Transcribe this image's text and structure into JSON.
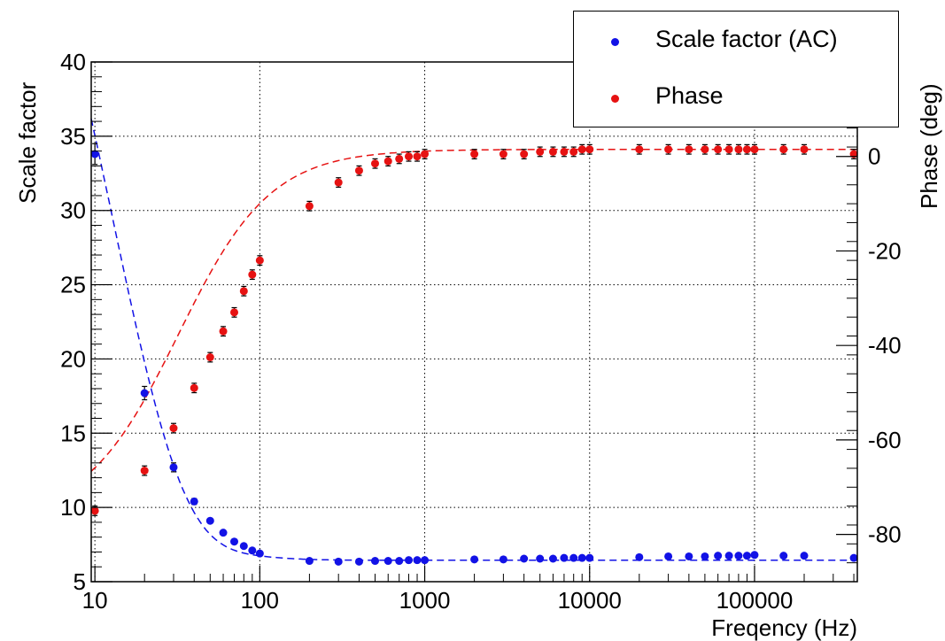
{
  "chart_data": {
    "type": "scatter",
    "title": "",
    "xlabel": "Freqency (Hz)",
    "ylabel": "Scale factor",
    "y2label": "Phase (deg)",
    "x_scale": "log",
    "xlim": [
      9.5,
      420000
    ],
    "ylim": [
      5,
      40
    ],
    "y2lim": [
      -90,
      20
    ],
    "grid": true,
    "legend_position": "top-right",
    "x_ticks": [
      "10",
      "100",
      "1000",
      "10000",
      "100000"
    ],
    "y_ticks": [
      "5",
      "10",
      "15",
      "20",
      "25",
      "30",
      "35",
      "40"
    ],
    "y2_ticks": [
      "-80",
      "-60",
      "-40",
      "-20",
      "0"
    ],
    "series": [
      {
        "name": "Scale factor (AC)",
        "axis": "left",
        "color": "#1212e6",
        "marker": "circle",
        "fit": "dashed",
        "x": [
          10,
          20,
          30,
          40,
          50,
          60,
          70,
          80,
          90,
          100,
          200,
          300,
          400,
          500,
          600,
          700,
          800,
          900,
          1000,
          2000,
          3000,
          4000,
          5000,
          6000,
          7000,
          8000,
          9000,
          10000,
          20000,
          30000,
          40000,
          50000,
          60000,
          70000,
          80000,
          90000,
          100000,
          150000,
          200000,
          400000
        ],
        "y": [
          33.8,
          17.7,
          12.7,
          10.4,
          9.1,
          8.3,
          7.7,
          7.4,
          7.1,
          6.9,
          6.4,
          6.35,
          6.35,
          6.4,
          6.4,
          6.4,
          6.45,
          6.45,
          6.45,
          6.5,
          6.5,
          6.55,
          6.55,
          6.55,
          6.6,
          6.6,
          6.6,
          6.6,
          6.65,
          6.7,
          6.7,
          6.7,
          6.75,
          6.75,
          6.75,
          6.75,
          6.8,
          6.75,
          6.75,
          6.6
        ],
        "yerr": [
          0.7,
          0.45,
          0.3,
          0.2,
          0.1,
          0.05,
          0.05,
          0.05,
          0.05,
          0.05,
          0.03,
          0.03,
          0.03,
          0.03,
          0.03,
          0.03,
          0.03,
          0.03,
          0.03,
          0.03,
          0.03,
          0.03,
          0.03,
          0.03,
          0.03,
          0.03,
          0.03,
          0.03,
          0.03,
          0.03,
          0.03,
          0.03,
          0.03,
          0.03,
          0.03,
          0.03,
          0.03,
          0.03,
          0.03,
          0.03
        ]
      },
      {
        "name": "Phase",
        "axis": "right",
        "color": "#e61212",
        "marker": "circle",
        "fit": "dashed",
        "x": [
          10,
          20,
          30,
          40,
          50,
          60,
          70,
          80,
          90,
          100,
          200,
          300,
          400,
          500,
          600,
          700,
          800,
          900,
          1000,
          2000,
          3000,
          4000,
          5000,
          6000,
          7000,
          8000,
          9000,
          10000,
          20000,
          30000,
          40000,
          50000,
          60000,
          70000,
          80000,
          90000,
          100000,
          150000,
          200000,
          400000
        ],
        "y": [
          -75,
          -66.5,
          -57.5,
          -49,
          -42.5,
          -37,
          -33,
          -28.5,
          -25,
          -22,
          -10.5,
          -5.5,
          -3,
          -1.5,
          -1,
          -0.5,
          0,
          0,
          0.5,
          0.5,
          0.5,
          0.5,
          1,
          1,
          1,
          1,
          1.5,
          1.5,
          1.5,
          1.5,
          1.5,
          1.5,
          1.5,
          1.5,
          1.5,
          1.5,
          1.5,
          1.5,
          1.5,
          0.5
        ],
        "yerr": [
          1,
          1,
          1,
          1,
          1,
          1,
          1,
          1,
          1,
          1,
          1,
          1,
          1,
          1,
          1,
          1,
          1,
          1,
          1,
          1,
          1,
          1,
          1,
          1,
          1,
          1,
          1,
          1,
          1,
          1,
          1,
          1,
          1,
          1,
          1,
          1,
          1,
          1,
          1,
          1
        ]
      }
    ]
  }
}
